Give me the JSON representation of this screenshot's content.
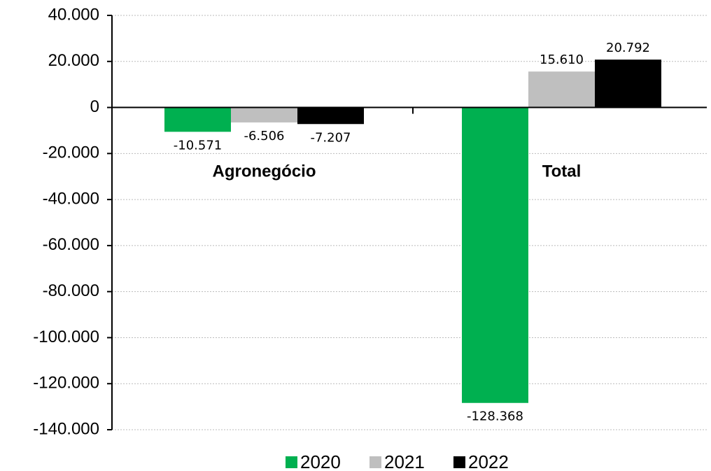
{
  "chart_data": {
    "type": "bar",
    "categories": [
      "Agronegócio",
      "Total"
    ],
    "series": [
      {
        "name": "2020",
        "color": "#00b050",
        "values": [
          -10571,
          -128368
        ],
        "value_labels": [
          "-10.571",
          "-128.368"
        ]
      },
      {
        "name": "2021",
        "color": "#bfbfbf",
        "values": [
          -6506,
          15610
        ],
        "value_labels": [
          "-6.506",
          "15.610"
        ]
      },
      {
        "name": "2022",
        "color": "#000000",
        "values": [
          -7207,
          20792
        ],
        "value_labels": [
          "-7.207",
          "20.792"
        ]
      }
    ],
    "ylim": [
      -140000,
      40000
    ],
    "yticks": [
      {
        "value": -140000,
        "label": "-140.000"
      },
      {
        "value": -120000,
        "label": "-120.000"
      },
      {
        "value": -100000,
        "label": "-100.000"
      },
      {
        "value": -80000,
        "label": "-80.000"
      },
      {
        "value": -60000,
        "label": "-60.000"
      },
      {
        "value": -40000,
        "label": "-40.000"
      },
      {
        "value": -20000,
        "label": "-20.000"
      },
      0,
      {
        "value": 20000,
        "label": "20.000"
      },
      {
        "value": 40000,
        "label": "40.000"
      }
    ],
    "grid": true,
    "legend": "bottom"
  }
}
